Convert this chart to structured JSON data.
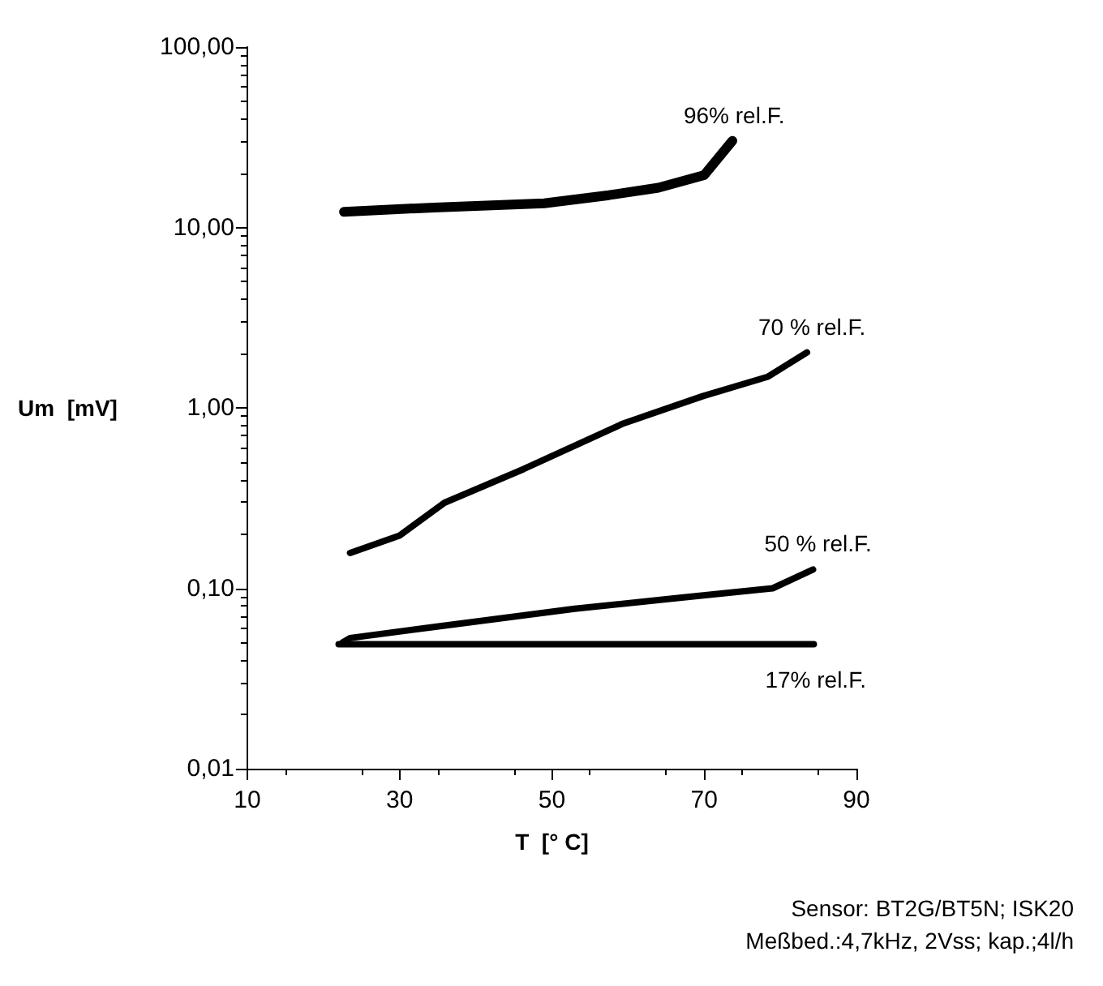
{
  "chart_data": {
    "type": "line",
    "xlabel": "T  [° C]",
    "ylabel": "Um  [mV]",
    "log": "y",
    "xlim": [
      10,
      90
    ],
    "xticks": [
      10,
      30,
      50,
      70,
      90
    ],
    "ylim": [
      0.01,
      100
    ],
    "yticks": [
      {
        "value": 0.01,
        "label": "0,01"
      },
      {
        "value": 0.1,
        "label": "0,10"
      },
      {
        "value": 1,
        "label": "1,00"
      },
      {
        "value": 10,
        "label": "10,00"
      },
      {
        "value": 100,
        "label": "100,00"
      }
    ],
    "grid": false,
    "legend": false,
    "marker": "none",
    "line_style": "solid",
    "series": [
      {
        "name": "96% rel.F.",
        "color": "#000000",
        "x": [
          22.7,
          34.5,
          49,
          57.5,
          64,
          70,
          73.7
        ],
        "values": [
          12.2,
          12.9,
          13.6,
          15.1,
          16.6,
          19.5,
          30.2
        ]
      },
      {
        "name": "70 % rel.F.",
        "color": "#000000",
        "x": [
          23.5,
          30,
          35.9,
          46.3,
          59.4,
          69.8,
          78.4,
          83.5
        ],
        "values": [
          0.157,
          0.196,
          0.298,
          0.458,
          0.82,
          1.16,
          1.49,
          2.03
        ]
      },
      {
        "name": "50 % rel.F.",
        "color": "#000000",
        "x": [
          22.5,
          23.5,
          34.5,
          53,
          67.3,
          79,
          84.3
        ],
        "values": [
          0.05,
          0.053,
          0.061,
          0.077,
          0.089,
          0.1,
          0.127
        ]
      },
      {
        "name": "17% rel.F.",
        "color": "#000000",
        "x": [
          22,
          40,
          60,
          84.4
        ],
        "values": [
          0.049,
          0.049,
          0.049,
          0.049
        ]
      }
    ],
    "annotations": [
      "Sensor: BT2G/BT5N; ISK20",
      "Meßbed.:4,7kHz, 2Vss; kap.;4l/h"
    ]
  }
}
